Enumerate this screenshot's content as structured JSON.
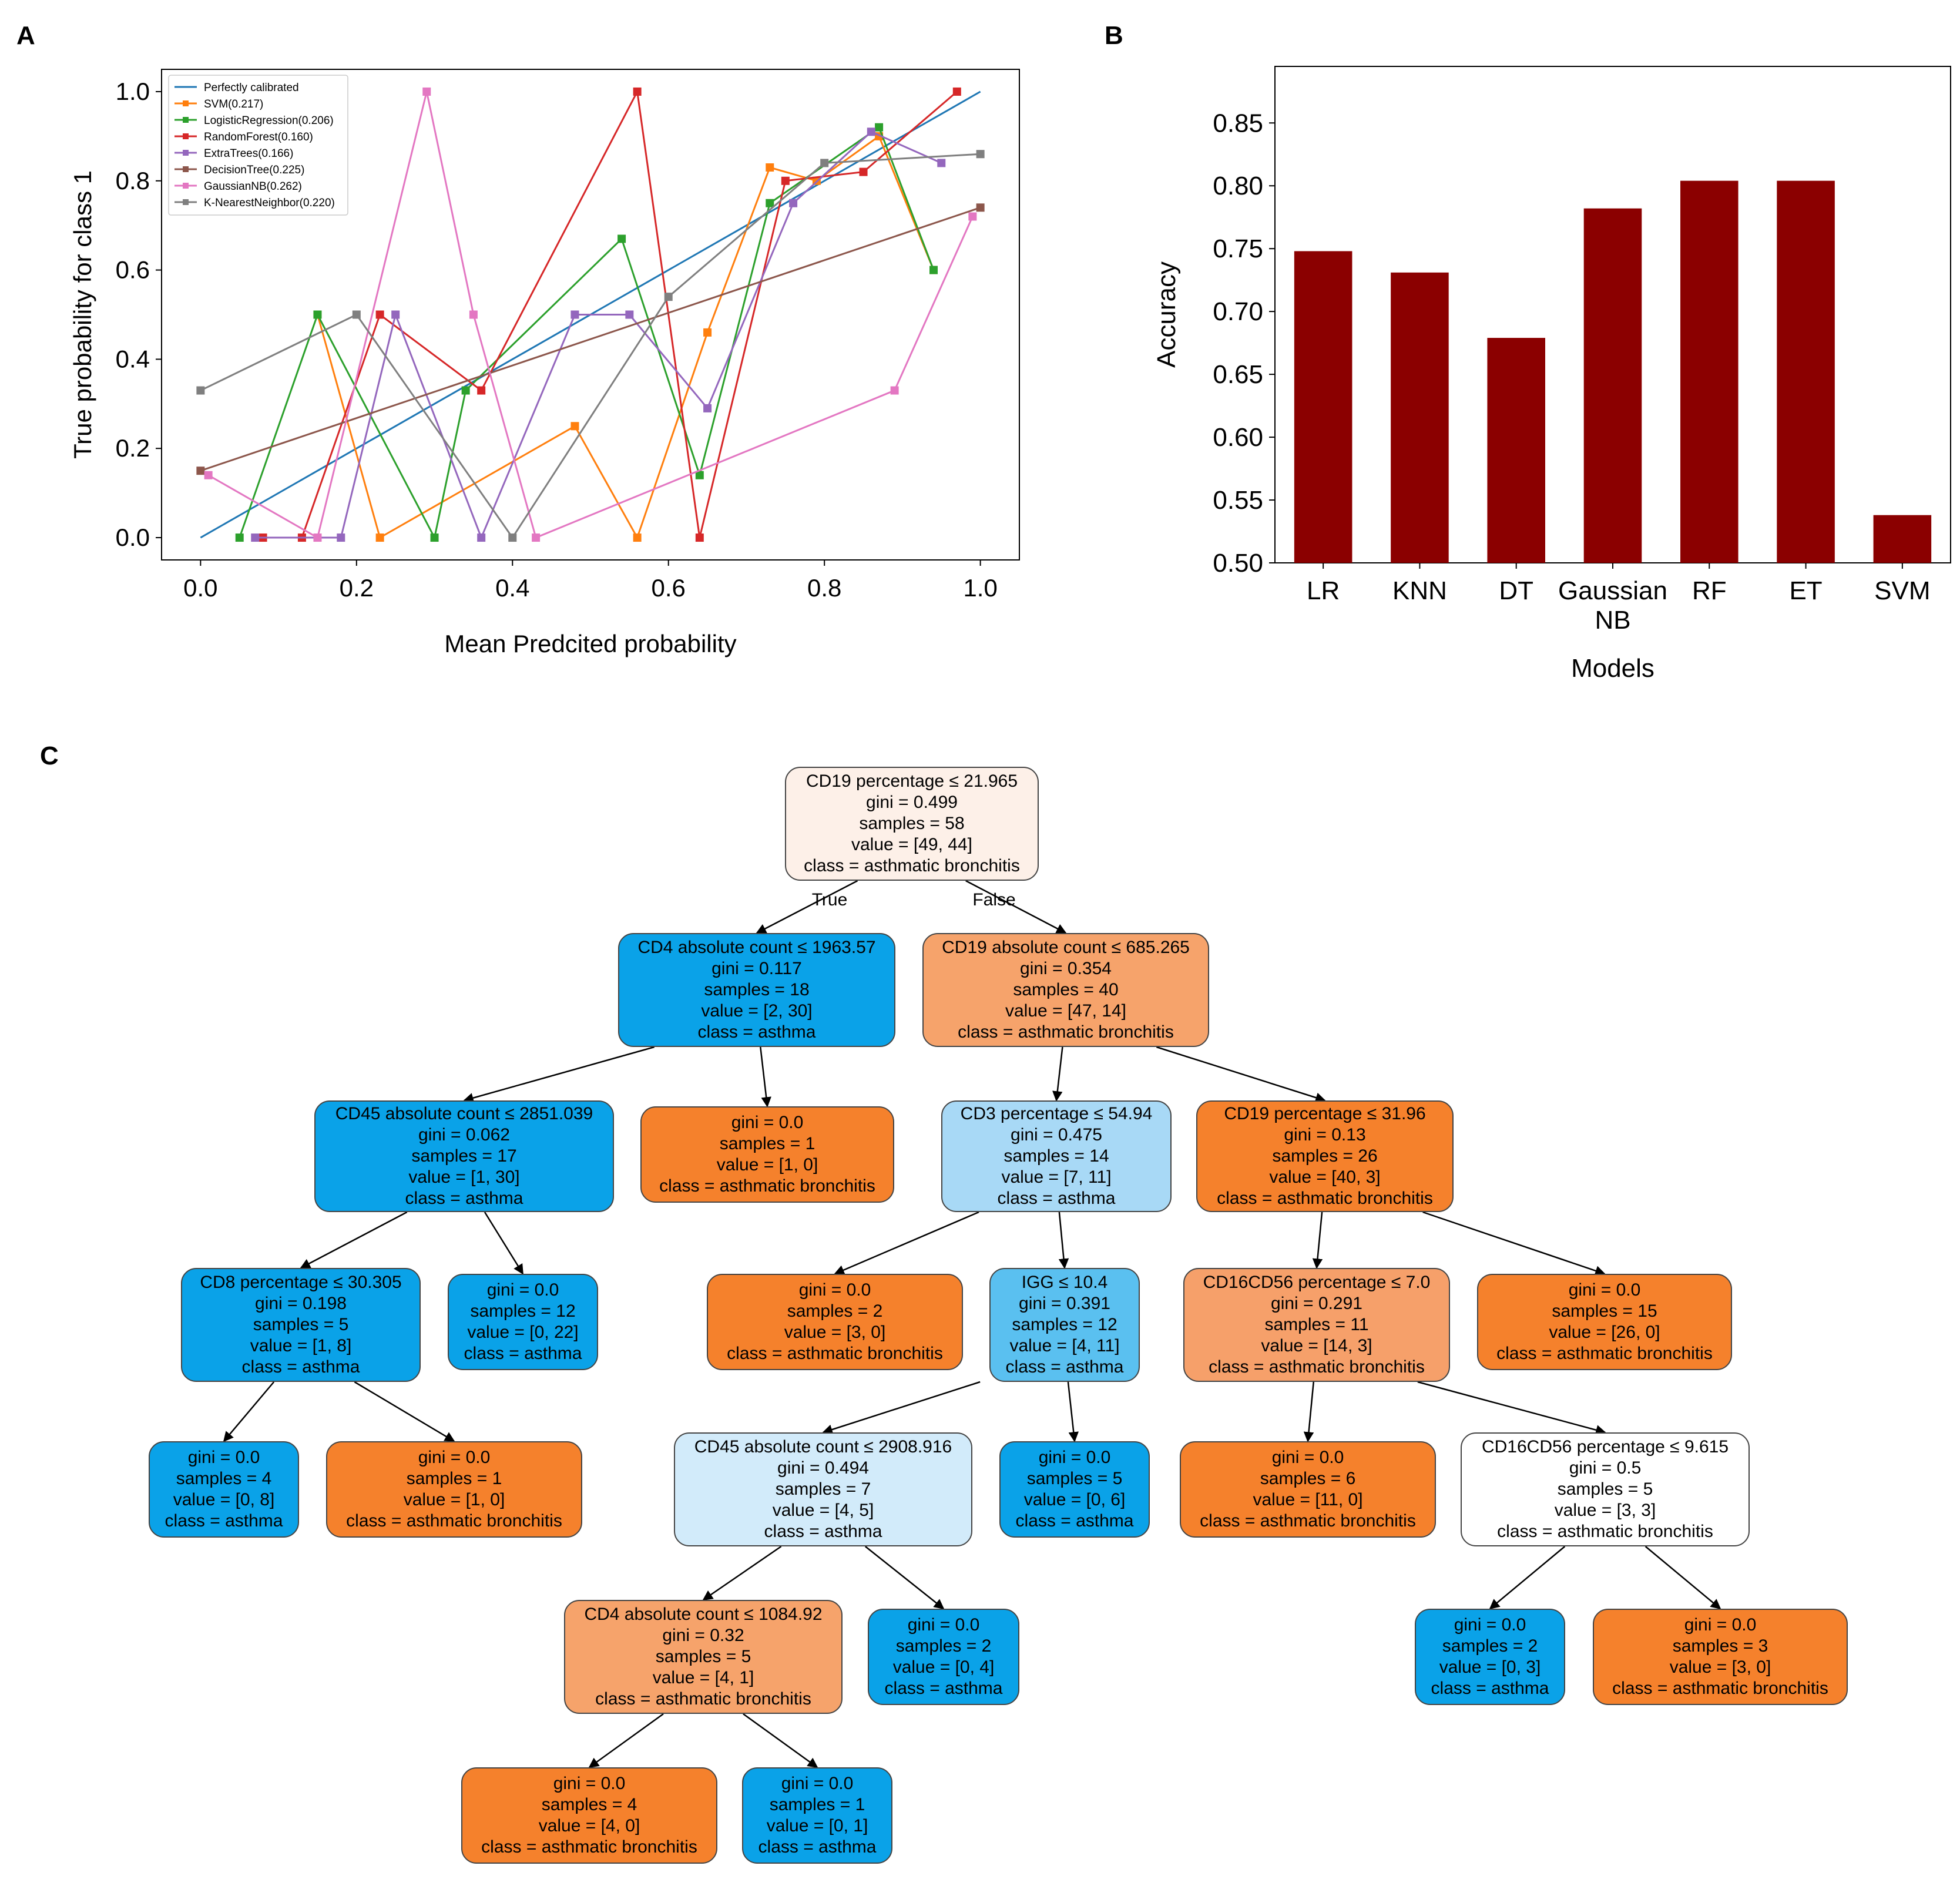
{
  "panels": {
    "a": "A",
    "b": "B",
    "c": "C"
  },
  "chart_data": [
    {
      "type": "line",
      "panel": "A",
      "title": "",
      "xlabel": "Mean Predcited probability",
      "ylabel": "True probability for class 1",
      "xlim": [
        -0.05,
        1.05
      ],
      "ylim": [
        -0.05,
        1.05
      ],
      "xticks": [
        0.0,
        0.2,
        0.4,
        0.6,
        0.8,
        1.0
      ],
      "xtick_labels": [
        "0.0",
        "0.2",
        "0.4",
        "0.6",
        "0.8",
        "1.0"
      ],
      "yticks": [
        0.0,
        0.2,
        0.4,
        0.6,
        0.8,
        1.0
      ],
      "ytick_labels": [
        "0.0",
        "0.2",
        "0.4",
        "0.6",
        "0.8",
        "1.0"
      ],
      "legend_position": "top-left",
      "series": [
        {
          "name": "Perfectly calibrated",
          "color": "#1f77b4",
          "marker": false,
          "x": [
            0,
            1
          ],
          "y": [
            0,
            1
          ]
        },
        {
          "name": "SVM(0.217)",
          "color": "#ff7f0e",
          "marker": true,
          "x": [
            0.15,
            0.23,
            0.48,
            0.56,
            0.65,
            0.73,
            0.79,
            0.87,
            0.94
          ],
          "y": [
            0.5,
            0.0,
            0.25,
            0.0,
            0.46,
            0.83,
            0.8,
            0.9,
            0.6
          ]
        },
        {
          "name": "LogisticRegression(0.206)",
          "color": "#2ca02c",
          "marker": true,
          "x": [
            0.05,
            0.15,
            0.3,
            0.34,
            0.54,
            0.64,
            0.73,
            0.87,
            0.94
          ],
          "y": [
            0.0,
            0.5,
            0.0,
            0.33,
            0.67,
            0.14,
            0.75,
            0.92,
            0.6
          ]
        },
        {
          "name": "RandomForest(0.160)",
          "color": "#d62728",
          "marker": true,
          "x": [
            0.08,
            0.13,
            0.23,
            0.36,
            0.56,
            0.64,
            0.75,
            0.85,
            0.97
          ],
          "y": [
            0.0,
            0.0,
            0.5,
            0.33,
            1.0,
            0.0,
            0.8,
            0.82,
            1.0
          ]
        },
        {
          "name": "ExtraTrees(0.166)",
          "color": "#9467bd",
          "marker": true,
          "x": [
            0.07,
            0.18,
            0.25,
            0.36,
            0.48,
            0.55,
            0.65,
            0.76,
            0.86,
            0.95
          ],
          "y": [
            0.0,
            0.0,
            0.5,
            0.0,
            0.5,
            0.5,
            0.29,
            0.75,
            0.91,
            0.84
          ]
        },
        {
          "name": "DecisionTree(0.225)",
          "color": "#8c564b",
          "marker": true,
          "x": [
            0.0,
            1.0
          ],
          "y": [
            0.15,
            0.74
          ]
        },
        {
          "name": "GaussianNB(0.262)",
          "color": "#e377c2",
          "marker": true,
          "x": [
            0.01,
            0.15,
            0.29,
            0.35,
            0.43,
            0.89,
            0.99
          ],
          "y": [
            0.14,
            0.0,
            1.0,
            0.5,
            0.0,
            0.33,
            0.72
          ]
        },
        {
          "name": "K-NearestNeighbor(0.220)",
          "color": "#7f7f7f",
          "marker": true,
          "x": [
            0.0,
            0.2,
            0.4,
            0.6,
            0.8,
            1.0
          ],
          "y": [
            0.33,
            0.5,
            0.0,
            0.54,
            0.84,
            0.86
          ]
        }
      ]
    },
    {
      "type": "bar",
      "panel": "B",
      "title": "",
      "xlabel": "Models",
      "ylabel": "Accuracy",
      "categories": [
        "LR",
        "KNN",
        "DT",
        "Gaussian NB",
        "RF",
        "ET",
        "SVM"
      ],
      "values": [
        0.748,
        0.731,
        0.679,
        0.782,
        0.804,
        0.804,
        0.538
      ],
      "ylim": [
        0.5,
        0.895
      ],
      "yticks": [
        0.5,
        0.55,
        0.6,
        0.65,
        0.7,
        0.75,
        0.8,
        0.85
      ],
      "ytick_labels": [
        "0.50",
        "0.55",
        "0.60",
        "0.65",
        "0.70",
        "0.75",
        "0.80",
        "0.85"
      ],
      "bar_color": "#8b0000"
    }
  ],
  "tree": {
    "edge_labels": {
      "true": "True",
      "false": "False"
    },
    "nodes": [
      {
        "id": "n0",
        "color": "#fdf0e8",
        "lines": [
          "CD19 percentage ≤ 21.965",
          "gini = 0.499",
          "samples = 58",
          "value = [49, 44]",
          "class = asthmatic bronchitis"
        ]
      },
      {
        "id": "n1",
        "color": "#0aa2e8",
        "lines": [
          "CD4 absolute count ≤ 1963.57",
          "gini = 0.117",
          "samples = 18",
          "value = [2, 30]",
          "class = asthma"
        ]
      },
      {
        "id": "n2",
        "color": "#f6a36b",
        "lines": [
          "CD19 absolute count ≤ 685.265",
          "gini = 0.354",
          "samples = 40",
          "value = [47, 14]",
          "class = asthmatic bronchitis"
        ]
      },
      {
        "id": "n3",
        "color": "#0aa2e8",
        "lines": [
          "CD45 absolute count ≤ 2851.039",
          "gini = 0.062",
          "samples = 17",
          "value = [1, 30]",
          "class = asthma"
        ]
      },
      {
        "id": "n4",
        "color": "#f5812c",
        "lines": [
          "gini = 0.0",
          "samples = 1",
          "value = [1, 0]",
          "class = asthmatic bronchitis"
        ]
      },
      {
        "id": "n5",
        "color": "#a8d9f6",
        "lines": [
          "CD3 percentage ≤ 54.94",
          "gini = 0.475",
          "samples = 14",
          "value = [7, 11]",
          "class = asthma"
        ]
      },
      {
        "id": "n6",
        "color": "#f5812c",
        "lines": [
          "CD19 percentage ≤ 31.96",
          "gini = 0.13",
          "samples = 26",
          "value = [40, 3]",
          "class = asthmatic bronchitis"
        ]
      },
      {
        "id": "n7",
        "color": "#0aa2e8",
        "lines": [
          "CD8 percentage ≤ 30.305",
          "gini = 0.198",
          "samples = 5",
          "value = [1, 8]",
          "class = asthma"
        ]
      },
      {
        "id": "n8",
        "color": "#0aa2e8",
        "lines": [
          "gini = 0.0",
          "samples = 12",
          "value = [0, 22]",
          "class = asthma"
        ]
      },
      {
        "id": "n9",
        "color": "#f5812c",
        "lines": [
          "gini = 0.0",
          "samples = 2",
          "value = [3, 0]",
          "class = asthmatic bronchitis"
        ]
      },
      {
        "id": "n10",
        "color": "#5ac0f0",
        "lines": [
          "IGG ≤ 10.4",
          "gini = 0.391",
          "samples = 12",
          "value = [4, 11]",
          "class = asthma"
        ]
      },
      {
        "id": "n11",
        "color": "#f6a06a",
        "lines": [
          "CD16CD56 percentage ≤ 7.0",
          "gini = 0.291",
          "samples = 11",
          "value = [14, 3]",
          "class = asthmatic bronchitis"
        ]
      },
      {
        "id": "n12",
        "color": "#f5812c",
        "lines": [
          "gini = 0.0",
          "samples = 15",
          "value = [26, 0]",
          "class = asthmatic bronchitis"
        ]
      },
      {
        "id": "n13",
        "color": "#0aa2e8",
        "lines": [
          "gini = 0.0",
          "samples = 4",
          "value = [0, 8]",
          "class = asthma"
        ]
      },
      {
        "id": "n14",
        "color": "#f5812c",
        "lines": [
          "gini = 0.0",
          "samples = 1",
          "value = [1, 0]",
          "class = asthmatic bronchitis"
        ]
      },
      {
        "id": "n15",
        "color": "#d2ebfa",
        "lines": [
          "CD45 absolute count ≤ 2908.916",
          "gini = 0.494",
          "samples = 7",
          "value = [4, 5]",
          "class = asthma"
        ]
      },
      {
        "id": "n16",
        "color": "#0aa2e8",
        "lines": [
          "gini = 0.0",
          "samples = 5",
          "value = [0, 6]",
          "class = asthma"
        ]
      },
      {
        "id": "n17",
        "color": "#f5812c",
        "lines": [
          "gini = 0.0",
          "samples = 6",
          "value = [11, 0]",
          "class = asthmatic bronchitis"
        ]
      },
      {
        "id": "n18",
        "color": "#ffffff",
        "lines": [
          "CD16CD56 percentage ≤ 9.615",
          "gini = 0.5",
          "samples = 5",
          "value = [3, 3]",
          "class = asthmatic bronchitis"
        ]
      },
      {
        "id": "n19",
        "color": "#f6a36b",
        "lines": [
          "CD4 absolute count ≤ 1084.92",
          "gini = 0.32",
          "samples = 5",
          "value = [4, 1]",
          "class = asthmatic bronchitis"
        ]
      },
      {
        "id": "n20",
        "color": "#0aa2e8",
        "lines": [
          "gini = 0.0",
          "samples = 2",
          "value = [0, 4]",
          "class = asthma"
        ]
      },
      {
        "id": "n21",
        "color": "#0aa2e8",
        "lines": [
          "gini = 0.0",
          "samples = 2",
          "value = [0, 3]",
          "class = asthma"
        ]
      },
      {
        "id": "n22",
        "color": "#f5812c",
        "lines": [
          "gini = 0.0",
          "samples = 3",
          "value = [3, 0]",
          "class = asthmatic bronchitis"
        ]
      },
      {
        "id": "n23",
        "color": "#f5812c",
        "lines": [
          "gini = 0.0",
          "samples = 4",
          "value = [4, 0]",
          "class = asthmatic bronchitis"
        ]
      },
      {
        "id": "n24",
        "color": "#0aa2e8",
        "lines": [
          "gini = 0.0",
          "samples = 1",
          "value = [0, 1]",
          "class = asthma"
        ]
      }
    ]
  }
}
